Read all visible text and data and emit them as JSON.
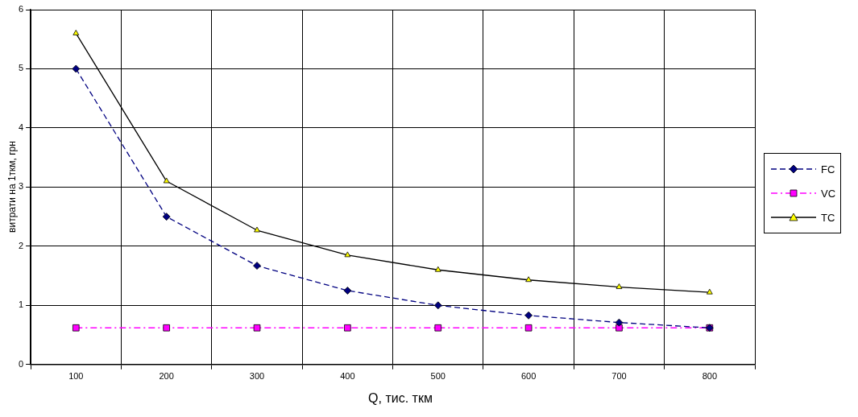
{
  "chart_data": {
    "type": "line",
    "xlabel": "Q, тис. ткм",
    "ylabel": "витрати на 1ткм, грн",
    "categories": [
      "100",
      "200",
      "300",
      "400",
      "500",
      "600",
      "700",
      "800"
    ],
    "series": [
      {
        "name": "FC",
        "color": "#000080",
        "marker": "diamond",
        "line_style": "dashed",
        "values": [
          5,
          2.5,
          1.67,
          1.25,
          1,
          0.83,
          0.71,
          0.62
        ]
      },
      {
        "name": "VC",
        "color": "#ff00ff",
        "marker": "square",
        "line_style": "dashdot",
        "values": [
          0.62,
          0.62,
          0.62,
          0.62,
          0.62,
          0.62,
          0.62,
          0.62
        ]
      },
      {
        "name": "TC",
        "color": "#ffff00",
        "marker": "triangle",
        "line_style": "solid",
        "values": [
          5.6,
          3.1,
          2.27,
          1.85,
          1.6,
          1.43,
          1.31,
          1.22
        ]
      }
    ],
    "ylim": [
      0,
      6
    ],
    "yticks": [
      0,
      1,
      2,
      3,
      4,
      5,
      6
    ],
    "grid": true,
    "legend": "right"
  }
}
